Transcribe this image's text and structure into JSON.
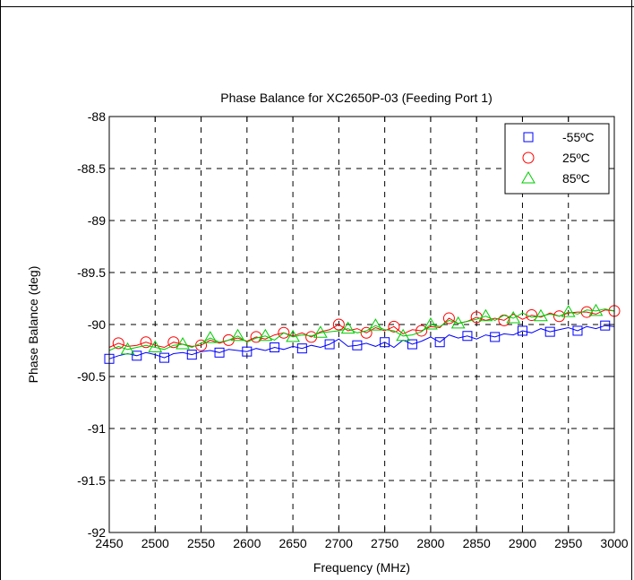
{
  "chart_data": {
    "type": "line",
    "title": "Phase Balance for XC2650P-03 (Feeding Port 1)",
    "xlabel": "Frequency (MHz)",
    "ylabel": "Phase Balance (deg)",
    "xlim": [
      2450,
      3000
    ],
    "ylim": [
      -92,
      -88
    ],
    "x_ticks": [
      2450,
      2500,
      2550,
      2600,
      2650,
      2700,
      2750,
      2800,
      2850,
      2900,
      2950,
      3000
    ],
    "y_ticks": [
      -88,
      -88.5,
      -89,
      -89.5,
      -90,
      -90.5,
      -91,
      -91.5,
      -92
    ],
    "x_tick_labels": [
      "2450",
      "2500",
      "2550",
      "2600",
      "2650",
      "2700",
      "2750",
      "2800",
      "2850",
      "2900",
      "2950",
      "3000"
    ],
    "y_tick_labels": [
      "-88",
      "-88.5",
      "-89",
      "-89.5",
      "-90",
      "-90.5",
      "-91",
      "-91.5",
      "-92"
    ],
    "grid": true,
    "legend_position": "top-right",
    "x": [
      2450,
      2460,
      2470,
      2480,
      2490,
      2500,
      2510,
      2520,
      2530,
      2540,
      2550,
      2560,
      2570,
      2580,
      2590,
      2600,
      2610,
      2620,
      2630,
      2640,
      2650,
      2660,
      2670,
      2680,
      2690,
      2700,
      2710,
      2720,
      2730,
      2740,
      2750,
      2760,
      2770,
      2780,
      2790,
      2800,
      2810,
      2820,
      2830,
      2840,
      2850,
      2860,
      2870,
      2880,
      2890,
      2900,
      2910,
      2920,
      2930,
      2940,
      2950,
      2960,
      2970,
      2980,
      2990,
      3000
    ],
    "series": [
      {
        "name": "-55ºC",
        "color": "#0000ff",
        "marker": "square",
        "values": [
          -90.33,
          -90.3,
          -90.28,
          -90.3,
          -90.27,
          -90.29,
          -90.32,
          -90.28,
          -90.27,
          -90.29,
          -90.26,
          -90.25,
          -90.27,
          -90.24,
          -90.25,
          -90.26,
          -90.23,
          -90.25,
          -90.22,
          -90.24,
          -90.21,
          -90.23,
          -90.2,
          -90.22,
          -90.19,
          -90.14,
          -90.21,
          -90.2,
          -90.18,
          -90.21,
          -90.17,
          -90.22,
          -90.15,
          -90.19,
          -90.16,
          -90.12,
          -90.17,
          -90.1,
          -90.13,
          -90.11,
          -90.14,
          -90.1,
          -90.12,
          -90.09,
          -90.1,
          -90.06,
          -90.08,
          -90.04,
          -90.07,
          -90.05,
          -90.03,
          -90.06,
          -90.02,
          -90.04,
          -90.01,
          -90.02
        ]
      },
      {
        "name": "25ºC",
        "color": "#ff0000",
        "marker": "circle",
        "values": [
          -90.22,
          -90.18,
          -90.21,
          -90.2,
          -90.17,
          -90.2,
          -90.22,
          -90.17,
          -90.19,
          -90.21,
          -90.2,
          -90.15,
          -90.18,
          -90.15,
          -90.13,
          -90.16,
          -90.12,
          -90.14,
          -90.1,
          -90.08,
          -90.11,
          -90.08,
          -90.12,
          -90.07,
          -90.05,
          -90.0,
          -90.06,
          -90.04,
          -90.08,
          -90.03,
          -90.06,
          -90.02,
          -90.09,
          -90.05,
          -90.06,
          -90.02,
          -90.03,
          -89.94,
          -89.99,
          -89.97,
          -89.93,
          -89.96,
          -89.94,
          -89.96,
          -89.9,
          -89.95,
          -89.91,
          -89.93,
          -89.89,
          -89.92,
          -89.89,
          -89.88,
          -89.88,
          -89.9,
          -89.86,
          -89.87
        ]
      },
      {
        "name": "85ºC",
        "color": "#00cc00",
        "marker": "triangle",
        "values": [
          -90.25,
          -90.21,
          -90.24,
          -90.22,
          -90.2,
          -90.22,
          -90.24,
          -90.2,
          -90.19,
          -90.22,
          -90.18,
          -90.13,
          -90.17,
          -90.15,
          -90.11,
          -90.17,
          -90.13,
          -90.11,
          -90.15,
          -90.08,
          -90.12,
          -90.1,
          -90.11,
          -90.08,
          -90.07,
          -90.06,
          -90.04,
          -90.08,
          -90.06,
          -90.01,
          -90.05,
          -90.06,
          -90.11,
          -90.1,
          -90.07,
          -90.0,
          -90.02,
          -89.96,
          -89.99,
          -89.97,
          -89.95,
          -89.92,
          -89.96,
          -89.91,
          -89.94,
          -89.89,
          -89.93,
          -89.92,
          -89.9,
          -89.92,
          -89.88,
          -89.9,
          -89.86,
          -89.87,
          -89.85,
          -89.87
        ]
      }
    ],
    "marker_every": 3
  }
}
